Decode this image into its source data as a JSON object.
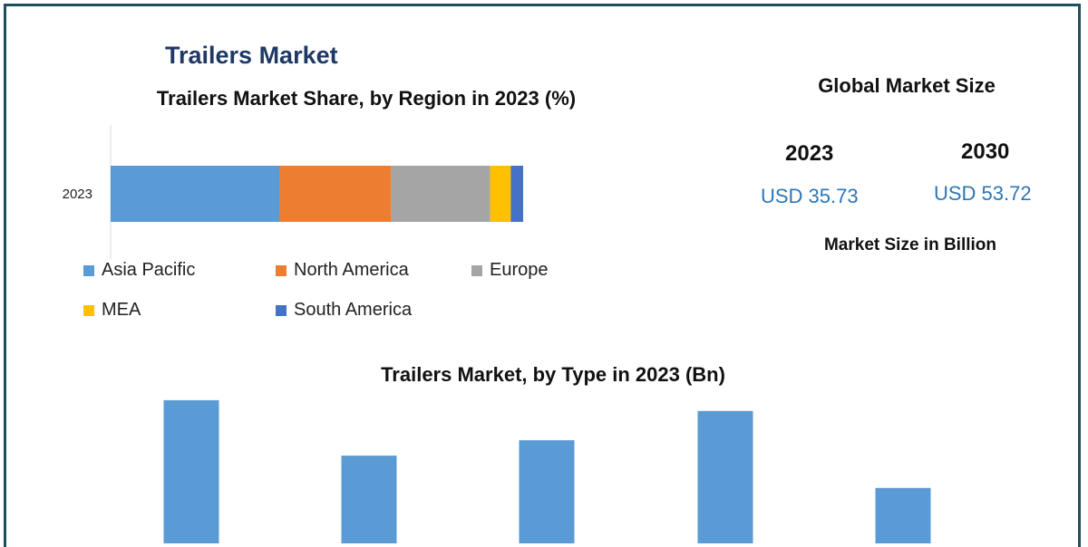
{
  "header": {
    "title": "Trailers Market"
  },
  "market_size": {
    "title": "Global Market Size",
    "years": [
      {
        "year": "2023",
        "value": "USD 35.73"
      },
      {
        "year": "2030",
        "value": "USD 53.72"
      }
    ],
    "note": "Market Size in Billion"
  },
  "chart_data": [
    {
      "type": "bar",
      "orientation": "horizontal",
      "stacked": true,
      "title": "Trailers Market Share, by Region in 2023 (%)",
      "categories": [
        "2023"
      ],
      "xlim": [
        0,
        100
      ],
      "grid": false,
      "legend_position": "bottom",
      "series": [
        {
          "name": "Asia Pacific",
          "color": "#5b9bd5",
          "values": [
            41
          ]
        },
        {
          "name": "North America",
          "color": "#ed7d31",
          "values": [
            27
          ]
        },
        {
          "name": "Europe",
          "color": "#a5a5a5",
          "values": [
            24
          ]
        },
        {
          "name": "MEA",
          "color": "#ffc000",
          "values": [
            5
          ]
        },
        {
          "name": "South America",
          "color": "#4472c4",
          "values": [
            3
          ]
        }
      ]
    },
    {
      "type": "bar",
      "title": "Trailers Market, by Type in 2023 (Bn)",
      "categories": [
        "",
        "",
        "",
        "",
        ""
      ],
      "values": [
        9.3,
        5.7,
        6.7,
        8.6,
        3.6
      ],
      "ylim": [
        0,
        10
      ],
      "color": "#5b9bd5",
      "grid": false
    }
  ]
}
